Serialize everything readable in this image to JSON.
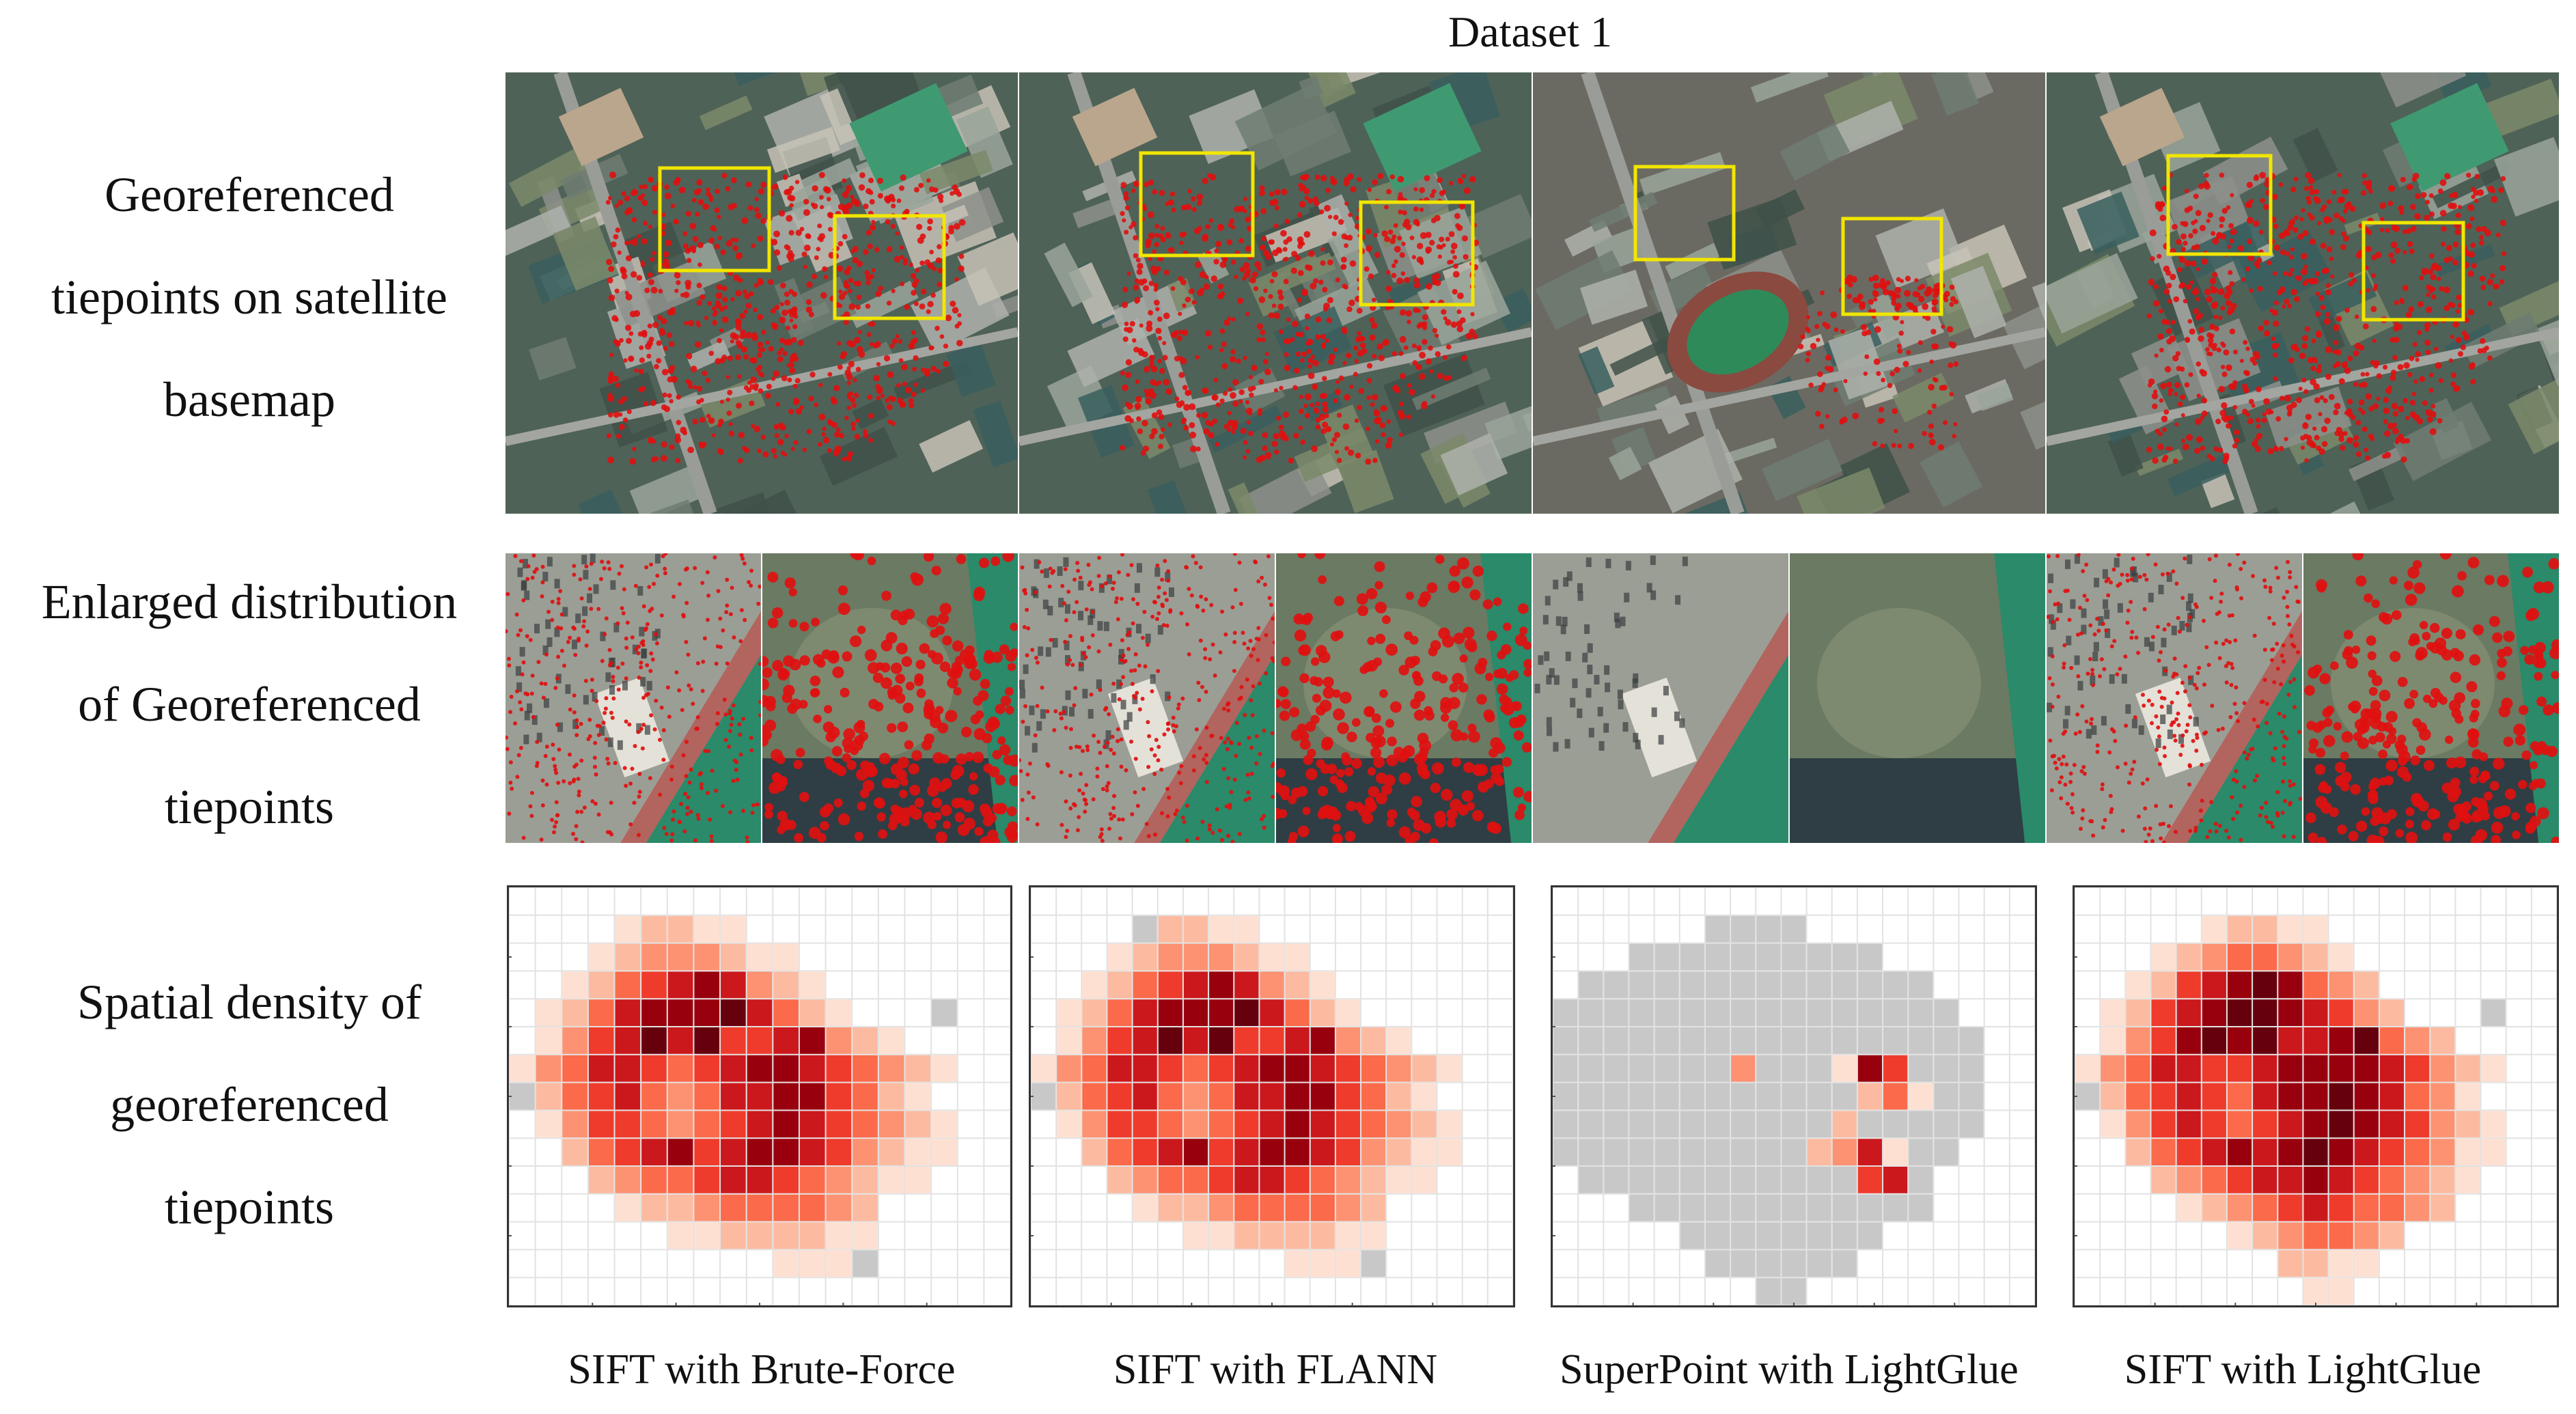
{
  "figure": {
    "title": "Dataset 1",
    "row_labels": [
      [
        "Georeferenced",
        "tiepoints on satellite",
        "basemap"
      ],
      [
        "Enlarged distribution",
        "of Georeferenced",
        "tiepoints"
      ],
      [
        "Spatial density of",
        "georeferenced",
        "tiepoints"
      ]
    ],
    "methods": [
      "SIFT with Brute-Force",
      "SIFT with FLANN",
      "SuperPoint with LightGlue",
      "SIFT with LightGlue"
    ],
    "colors": {
      "tiepoint": "#e01010",
      "highlight_box": "#f2e600",
      "no_data_cell": "#c8c8c8",
      "grid_line": "#e2e2e2",
      "heat_scale": [
        "#fee0d2",
        "#fcbba1",
        "#fc9272",
        "#fb6a4a",
        "#ef3b2c",
        "#cb181d",
        "#99000d",
        "#67000d"
      ]
    }
  },
  "chart_data": [
    {
      "type": "heatmap",
      "name": "SIFT with Brute-Force",
      "cells": [
        "....12211.........",
        "...12333211.......",
        "..1245676321......",
        ".124677786421...0.",
        ".13568685567321...",
        "13466545677654321.",
        "0245643466775421..",
        ".1355434567654321.",
        "..245675677653211.",
        "...2344566543211..",
        "....1223444432....",
        "......11222211....",
        "..........1110...."
      ]
    },
    {
      "type": "heatmap",
      "name": "SIFT with FLANN",
      "cells": [
        "....02211.........",
        "...12333211.......",
        "..1245676321......",
        ".124677786421.....",
        ".13568685567321...",
        "13466545677654321.",
        "0245643466775421..",
        ".1355434567654321.",
        "..245675677653211.",
        "...2344566543211..",
        "....1223444432....",
        "......11222211....",
        "..........1110...."
      ]
    },
    {
      "type": "heatmap",
      "name": "SuperPoint with LightGlue",
      "cells": [
        "......0000........",
        "...0000000000.....",
        ".00000000000000...",
        "0000000000000000..",
        "00000000000000000.",
        "00000003000175000.",
        "00000000000024100.",
        "00000000000200000.",
        "0000000000236100..",
        ".00000000000560...",
        "...000000000000...",
        ".....00000000.....",
        "......000000......",
        "........00........"
      ]
    },
    {
      "type": "heatmap",
      "name": "SIFT with LightGlue",
      "cells": [
        ".....12211........",
        "...12344321.......",
        "..1256787432......",
        ".125678876532...0.",
        ".13578786678432...",
        "13466556777765321.",
        "0245654677876431..",
        ".1356545678765321.",
        "..245676787654311.",
        "...2345667654321..",
        "....12345654432...",
        "......1234432.....",
        "........2211......",
        ".........11......."
      ]
    }
  ]
}
